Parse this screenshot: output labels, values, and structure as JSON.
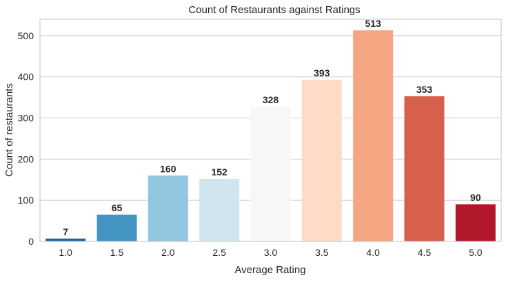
{
  "chart_data": {
    "type": "bar",
    "title": "Count of Restaurants against Ratings",
    "xlabel": "Average Rating",
    "ylabel": "Count of restaurants",
    "categories": [
      "1.0",
      "1.5",
      "2.0",
      "2.5",
      "3.0",
      "3.5",
      "4.0",
      "4.5",
      "5.0"
    ],
    "values": [
      7,
      65,
      160,
      152,
      328,
      393,
      513,
      353,
      90
    ],
    "colors": [
      "#2166ac",
      "#4393c3",
      "#92c5de",
      "#d1e5f0",
      "#f7f7f7",
      "#fddbc7",
      "#f4a582",
      "#d6604d",
      "#b2182b"
    ],
    "ylim": [
      0,
      540
    ],
    "yticks": [
      0,
      100,
      200,
      300,
      400,
      500
    ],
    "grid": "horizontal",
    "data_labels": true
  }
}
